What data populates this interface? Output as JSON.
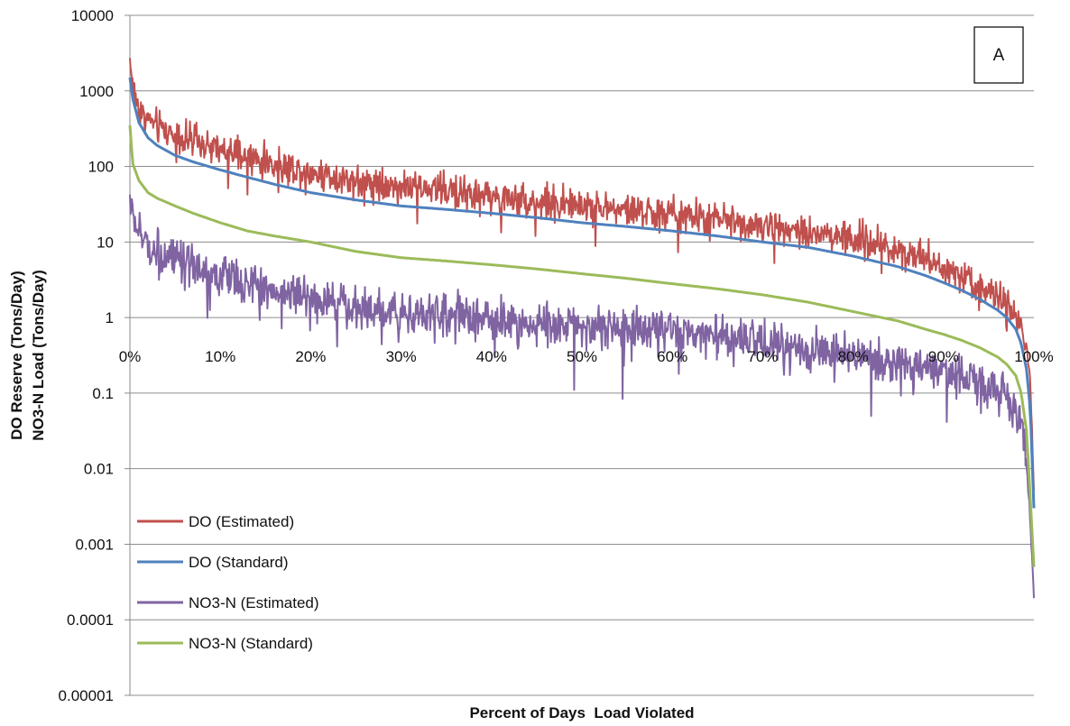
{
  "chart_data": {
    "type": "line",
    "xlabel": "Percent of Days  Load Violated",
    "ylabel_lines": [
      "DO Reserve (Tons/Day)",
      "NO3-N Load (Tons/Day)"
    ],
    "panel_label": "A",
    "x_tick_labels": [
      "0%",
      "10%",
      "20%",
      "30%",
      "40%",
      "50%",
      "60%",
      "70%",
      "80%",
      "90%",
      "100%"
    ],
    "xlim": [
      0,
      100
    ],
    "y_scale": "log",
    "ylim": [
      1e-05,
      10000
    ],
    "y_tick_labels": [
      "10000",
      "1000",
      "100",
      "10",
      "1",
      "0.1",
      "0.01",
      "0.001",
      "0.0001",
      "0.00001"
    ],
    "grid": "horizontal",
    "legend_position": "lower-left",
    "series": [
      {
        "name": "DO (Estimated)",
        "color": "#c0504d",
        "x": [
          0,
          0.5,
          1,
          2,
          3,
          5,
          7,
          10,
          13,
          16,
          20,
          25,
          30,
          35,
          40,
          45,
          50,
          55,
          60,
          65,
          70,
          75,
          80,
          85,
          88,
          90,
          92,
          94,
          96,
          97,
          98,
          98.6,
          99.2,
          99.6,
          100
        ],
        "y": [
          2500,
          900,
          600,
          420,
          340,
          260,
          210,
          160,
          130,
          105,
          85,
          65,
          55,
          48,
          40,
          34,
          30,
          26,
          23,
          20,
          17,
          14,
          11,
          8,
          6,
          4.8,
          3.7,
          2.7,
          1.9,
          1.5,
          1.0,
          0.7,
          0.4,
          0.15,
          0.005
        ],
        "noise": 0.22
      },
      {
        "name": "DO (Standard)",
        "color": "#4f81bd",
        "x": [
          0,
          0.3,
          1,
          2,
          3,
          5,
          7,
          10,
          13,
          16,
          20,
          25,
          30,
          35,
          40,
          45,
          50,
          55,
          60,
          65,
          70,
          75,
          80,
          85,
          88,
          90,
          92,
          94,
          96,
          97,
          98,
          98.6,
          99.2,
          99.6,
          100
        ],
        "y": [
          1500,
          800,
          380,
          240,
          190,
          140,
          115,
          90,
          72,
          58,
          45,
          36,
          30,
          27,
          24,
          21,
          18,
          16,
          14,
          12,
          10,
          8.5,
          6.5,
          4.7,
          3.6,
          2.9,
          2.3,
          1.75,
          1.25,
          1.0,
          0.7,
          0.45,
          0.2,
          0.06,
          0.003
        ]
      },
      {
        "name": "NO3-N (Estimated)",
        "color": "#8064a2",
        "x": [
          0,
          0.3,
          1,
          2,
          3,
          5,
          7,
          10,
          13,
          16,
          20,
          25,
          30,
          35,
          40,
          45,
          50,
          55,
          60,
          65,
          70,
          75,
          80,
          85,
          88,
          90,
          92,
          94,
          96,
          97,
          98,
          98.6,
          99.2,
          99.6,
          100
        ],
        "y": [
          40,
          22,
          13,
          9,
          7.5,
          5.5,
          4.5,
          3.5,
          2.8,
          2.3,
          1.8,
          1.4,
          1.2,
          1.05,
          0.95,
          0.85,
          0.78,
          0.7,
          0.62,
          0.55,
          0.47,
          0.38,
          0.3,
          0.24,
          0.21,
          0.19,
          0.16,
          0.14,
          0.11,
          0.09,
          0.06,
          0.035,
          0.012,
          0.002,
          0.0002
        ],
        "noise": 0.28
      },
      {
        "name": "NO3-N (Standard)",
        "color": "#9bbb59",
        "x": [
          0,
          0.3,
          1,
          2,
          3,
          5,
          7,
          10,
          13,
          16,
          20,
          25,
          30,
          35,
          40,
          45,
          50,
          55,
          60,
          65,
          70,
          75,
          80,
          85,
          88,
          90,
          92,
          94,
          96,
          97,
          98,
          98.6,
          99.2,
          99.6,
          100
        ],
        "y": [
          350,
          110,
          65,
          45,
          38,
          30,
          24,
          18,
          14,
          12,
          10,
          7.5,
          6.2,
          5.6,
          5.0,
          4.4,
          3.8,
          3.3,
          2.8,
          2.4,
          2.0,
          1.6,
          1.2,
          0.9,
          0.7,
          0.6,
          0.5,
          0.4,
          0.3,
          0.24,
          0.17,
          0.1,
          0.03,
          0.004,
          0.0005
        ]
      }
    ]
  }
}
